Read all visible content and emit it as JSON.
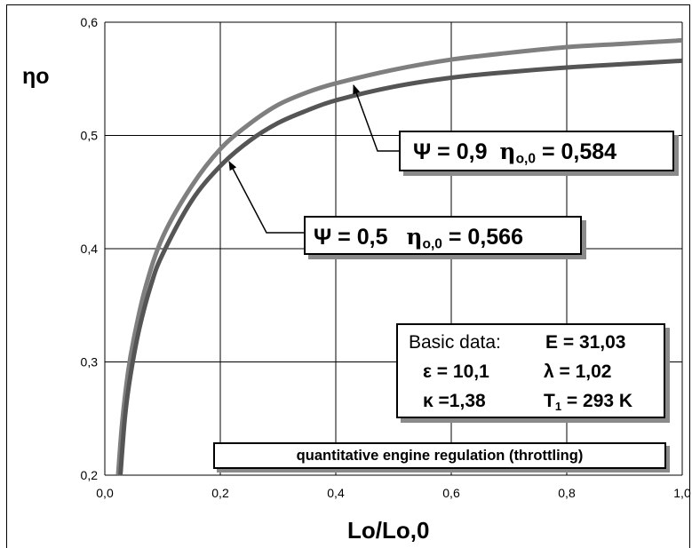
{
  "chart_data": {
    "type": "line",
    "xlim": [
      0.0,
      1.0
    ],
    "ylim": [
      0.2,
      0.6
    ],
    "x_ticks": [
      "0,0",
      "0,2",
      "0,4",
      "0,6",
      "0,8",
      "1,0"
    ],
    "y_ticks": [
      "0,2",
      "0,3",
      "0,4",
      "0,5",
      "0,6"
    ],
    "grid": true,
    "ylabel": "ηo",
    "xlabel": "Lo/Lo,0",
    "series": [
      {
        "psi": "0,9",
        "eta00": "0,584",
        "points": [
          [
            0.023,
            0.2
          ],
          [
            0.03,
            0.246
          ],
          [
            0.04,
            0.29
          ],
          [
            0.05,
            0.32
          ],
          [
            0.07,
            0.365
          ],
          [
            0.1,
            0.41
          ],
          [
            0.15,
            0.455
          ],
          [
            0.2,
            0.488
          ],
          [
            0.25,
            0.51
          ],
          [
            0.3,
            0.527
          ],
          [
            0.35,
            0.538
          ],
          [
            0.4,
            0.546
          ],
          [
            0.5,
            0.558
          ],
          [
            0.6,
            0.567
          ],
          [
            0.7,
            0.573
          ],
          [
            0.8,
            0.578
          ],
          [
            0.9,
            0.581
          ],
          [
            1.0,
            0.584
          ]
        ]
      },
      {
        "psi": "0,5",
        "eta00": "0,566",
        "points": [
          [
            0.027,
            0.2
          ],
          [
            0.035,
            0.252
          ],
          [
            0.045,
            0.29
          ],
          [
            0.06,
            0.33
          ],
          [
            0.08,
            0.368
          ],
          [
            0.1,
            0.395
          ],
          [
            0.15,
            0.442
          ],
          [
            0.2,
            0.473
          ],
          [
            0.25,
            0.495
          ],
          [
            0.3,
            0.511
          ],
          [
            0.35,
            0.522
          ],
          [
            0.4,
            0.531
          ],
          [
            0.5,
            0.543
          ],
          [
            0.6,
            0.551
          ],
          [
            0.7,
            0.556
          ],
          [
            0.8,
            0.56
          ],
          [
            0.9,
            0.563
          ],
          [
            1.0,
            0.566
          ]
        ]
      }
    ],
    "annotations": {
      "label_09": {
        "psi_prefix": "Ψ = 0,9",
        "eta_sym": "η",
        "eta_sub": "o,0",
        "eta_value": "= 0,584"
      },
      "label_05": {
        "psi_prefix": "Ψ = 0,5",
        "eta_sym": "η",
        "eta_sub": "o,0",
        "eta_value": "= 0,566"
      },
      "basic_data": {
        "title": "Basic data:",
        "E": "E = 31,03",
        "epsilon": "ε = 10,1",
        "lambda": "λ = 1,02",
        "kappa": "κ =1,38",
        "T1_prefix": "T",
        "T1_sub": "1",
        "T1_value": " = 293 K"
      },
      "regulation": "quantitative engine regulation (throttling)"
    }
  },
  "colors": {
    "series_09": "#7f7f7f",
    "series_05": "#555555",
    "grid": "#000000",
    "shadow": "#8a8a8a"
  }
}
